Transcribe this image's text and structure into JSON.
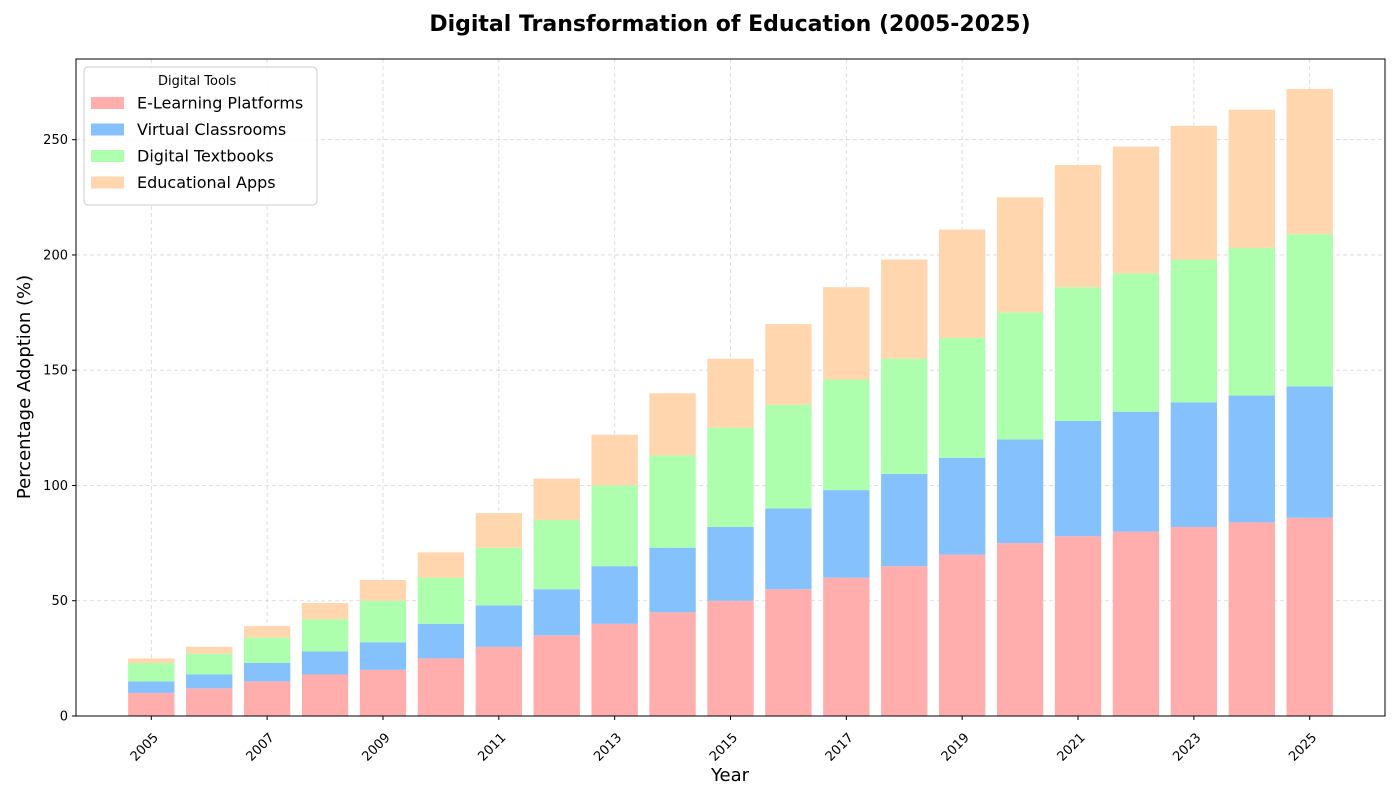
{
  "chart_data": {
    "type": "bar",
    "stacked": true,
    "title": "Digital Transformation of Education (2005-2025)",
    "xlabel": "Year",
    "ylabel": "Percentage Adoption (%)",
    "ylim": [
      0,
      285
    ],
    "yticks": [
      0,
      50,
      100,
      150,
      200,
      250
    ],
    "x_tick_labels": [
      "2005",
      "2007",
      "2009",
      "2011",
      "2013",
      "2015",
      "2017",
      "2019",
      "2021",
      "2023",
      "2025"
    ],
    "grid": true,
    "legend": {
      "title": "Digital Tools",
      "placement": "top-left"
    },
    "categories": [
      2005,
      2006,
      2007,
      2008,
      2009,
      2010,
      2011,
      2012,
      2013,
      2014,
      2015,
      2016,
      2017,
      2018,
      2019,
      2020,
      2021,
      2022,
      2023,
      2024,
      2025
    ],
    "series": [
      {
        "name": "E-Learning Platforms",
        "color": "#ffadad",
        "values": [
          10,
          12,
          15,
          18,
          20,
          25,
          30,
          35,
          40,
          45,
          50,
          55,
          60,
          65,
          70,
          75,
          78,
          80,
          82,
          84,
          86
        ]
      },
      {
        "name": "Virtual Classrooms",
        "color": "#85c1fc",
        "values": [
          5,
          6,
          8,
          10,
          12,
          15,
          18,
          20,
          25,
          28,
          32,
          35,
          38,
          40,
          42,
          45,
          50,
          52,
          54,
          55,
          57
        ]
      },
      {
        "name": "Digital Textbooks",
        "color": "#adffad",
        "values": [
          8,
          9,
          11,
          14,
          18,
          20,
          25,
          30,
          35,
          40,
          43,
          45,
          48,
          50,
          52,
          55,
          58,
          60,
          62,
          64,
          66
        ]
      },
      {
        "name": "Educational Apps",
        "color": "#ffd6ad",
        "values": [
          2,
          3,
          5,
          7,
          9,
          11,
          15,
          18,
          22,
          27,
          30,
          35,
          40,
          43,
          47,
          50,
          53,
          55,
          58,
          60,
          63
        ]
      }
    ]
  }
}
